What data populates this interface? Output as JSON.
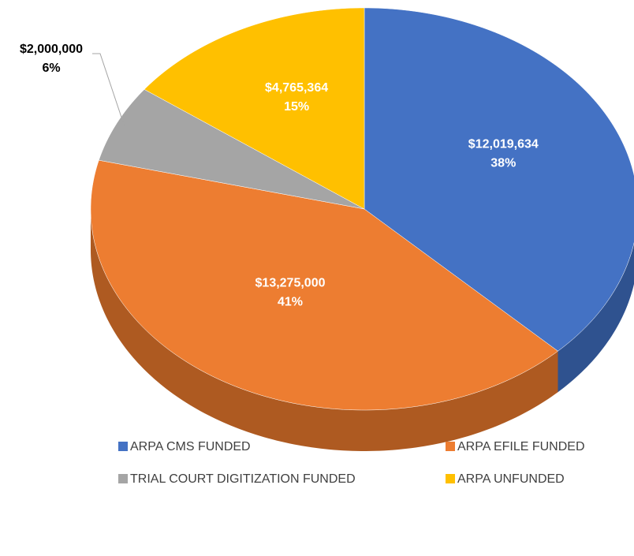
{
  "chart_data": {
    "type": "pie",
    "categories": [
      "ARPA CMS FUNDED",
      "ARPA EFILE FUNDED",
      "TRIAL COURT DIGITIZATION FUNDED",
      "ARPA UNFUNDED"
    ],
    "values": [
      12019634,
      13275000,
      2000000,
      4765364
    ],
    "value_labels": [
      "$12,019,634",
      "$13,275,000",
      "$2,000,000",
      "$4,765,364"
    ],
    "percent_labels": [
      "38%",
      "41%",
      "6%",
      "15%"
    ],
    "colors": [
      "#4472c4",
      "#ed7d31",
      "#a5a5a5",
      "#ffc000"
    ],
    "side_colors": [
      "#2f528f",
      "#ae5a21",
      "#7c7c7c",
      "#bf9000"
    ],
    "legend": "bottom"
  }
}
